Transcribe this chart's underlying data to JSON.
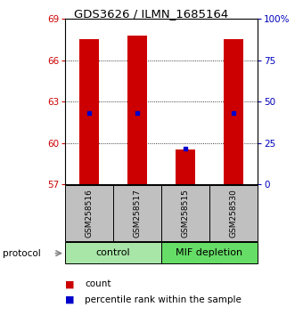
{
  "title": "GDS3626 / ILMN_1685164",
  "samples": [
    "GSM258516",
    "GSM258517",
    "GSM258515",
    "GSM258530"
  ],
  "bar_tops": [
    67.5,
    67.8,
    59.5,
    67.5
  ],
  "bar_bottoms": [
    57.0,
    57.0,
    57.0,
    57.0
  ],
  "percentile_values": [
    62.2,
    62.2,
    59.6,
    62.2
  ],
  "ymin": 57,
  "ymax": 69,
  "yticks_left": [
    57,
    60,
    63,
    66,
    69
  ],
  "yticks_right": [
    0,
    25,
    50,
    75,
    100
  ],
  "bar_color": "#CC0000",
  "percentile_color": "#0000CC",
  "sample_bg_color": "#C0C0C0",
  "control_color": "#A8E6A8",
  "mif_color": "#66DD66",
  "legend_count_color": "#CC0000",
  "legend_pct_color": "#0000CC",
  "ylabel_left_color": "#CC0000",
  "ylabel_right_color": "#0000BB",
  "bar_width": 0.4,
  "title_fontsize": 9.5,
  "tick_fontsize": 7.5,
  "sample_fontsize": 6.5,
  "group_fontsize": 8,
  "legend_fontsize": 7.5
}
